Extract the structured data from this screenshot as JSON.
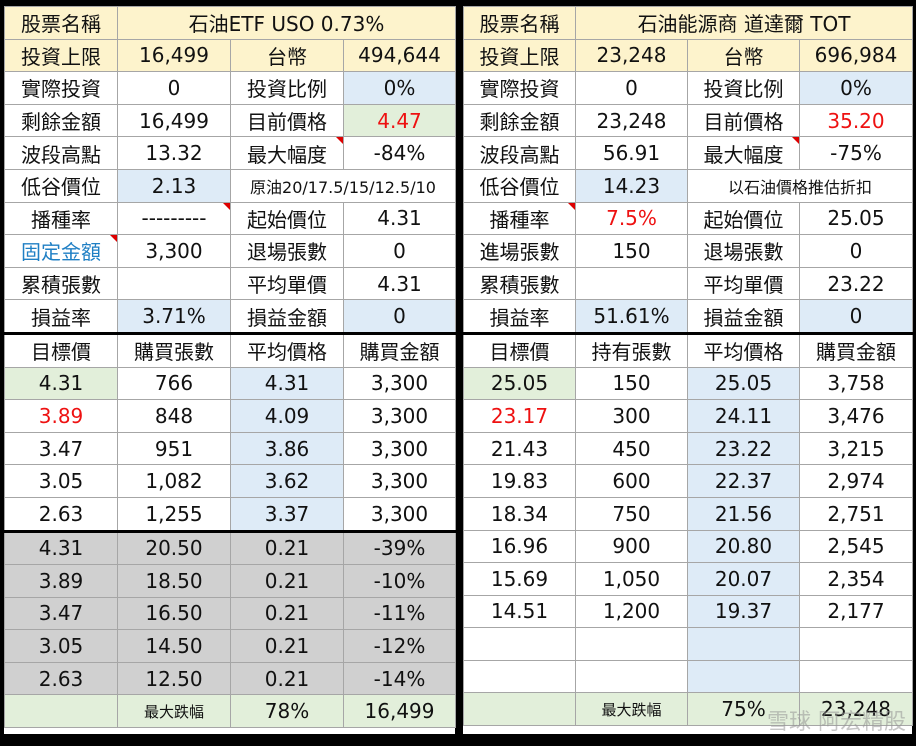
{
  "left": {
    "header": {
      "label": "股票名稱",
      "name": "石油ETF USO  0.73%"
    },
    "r1": {
      "a": "投資上限",
      "b": "16,499",
      "c": "台幣",
      "d": "494,644"
    },
    "r2": {
      "a": "實際投資",
      "b": "0",
      "c": "投資比例",
      "d": "0%"
    },
    "r3": {
      "a": "剩餘金額",
      "b": "16,499",
      "c": "目前價格",
      "d": "4.47"
    },
    "r4": {
      "a": "波段高點",
      "b": "13.32",
      "c": "最大幅度",
      "d": "-84%"
    },
    "r5": {
      "a": "低谷價位",
      "b": "2.13",
      "note": "原油20/17.5/15/12.5/10"
    },
    "r6": {
      "a": "播種率",
      "b": "---------",
      "c": "起始價位",
      "d": "4.31"
    },
    "r7": {
      "a": "固定金額",
      "b": "3,300",
      "c": "退場張數",
      "d": "0"
    },
    "r8": {
      "a": "累積張數",
      "b": "",
      "c": "平均單價",
      "d": "4.31"
    },
    "r9": {
      "a": "損益率",
      "b": "3.71%",
      "c": "損益金額",
      "d": "0"
    },
    "th": [
      "目標價",
      "購買張數",
      "平均價格",
      "購買金額"
    ],
    "rows": [
      [
        "4.31",
        "766",
        "4.31",
        "3,300"
      ],
      [
        "3.89",
        "848",
        "4.09",
        "3,300"
      ],
      [
        "3.47",
        "951",
        "3.86",
        "3,300"
      ],
      [
        "3.05",
        "1,082",
        "3.62",
        "3,300"
      ],
      [
        "2.63",
        "1,255",
        "3.37",
        "3,300"
      ]
    ],
    "grayrows": [
      [
        "4.31",
        "20.50",
        "0.21",
        "-39%"
      ],
      [
        "3.89",
        "18.50",
        "0.21",
        "-10%"
      ],
      [
        "3.47",
        "16.50",
        "0.21",
        "-11%"
      ],
      [
        "3.05",
        "14.50",
        "0.21",
        "-12%"
      ],
      [
        "2.63",
        "12.50",
        "0.21",
        "-14%"
      ]
    ],
    "footer": {
      "b": "最大跌幅",
      "c": "78%",
      "d": "16,499"
    }
  },
  "right": {
    "header": {
      "label": "股票名稱",
      "name": "石油能源商 道達爾 TOT"
    },
    "r1": {
      "a": "投資上限",
      "b": "23,248",
      "c": "台幣",
      "d": "696,984"
    },
    "r2": {
      "a": "實際投資",
      "b": "0",
      "c": "投資比例",
      "d": "0%"
    },
    "r3": {
      "a": "剩餘金額",
      "b": "23,248",
      "c": "目前價格",
      "d": "35.20"
    },
    "r4": {
      "a": "波段高點",
      "b": "56.91",
      "c": "最大幅度",
      "d": "-75%"
    },
    "r5": {
      "a": "低谷價位",
      "b": "14.23",
      "note": "以石油價格推估折扣"
    },
    "r6": {
      "a": "播種率",
      "b": "7.5%",
      "c": "起始價位",
      "d": "25.05"
    },
    "r7": {
      "a": "進場張數",
      "b": "150",
      "c": "退場張數",
      "d": "0"
    },
    "r8": {
      "a": "累積張數",
      "b": "",
      "c": "平均單價",
      "d": "23.22"
    },
    "r9": {
      "a": "損益率",
      "b": "51.61%",
      "c": "損益金額",
      "d": "0"
    },
    "th": [
      "目標價",
      "持有張數",
      "平均價格",
      "購買金額"
    ],
    "rows": [
      [
        "25.05",
        "150",
        "25.05",
        "3,758"
      ],
      [
        "23.17",
        "300",
        "24.11",
        "3,476"
      ],
      [
        "21.43",
        "450",
        "23.22",
        "3,215"
      ],
      [
        "19.83",
        "600",
        "22.37",
        "2,974"
      ],
      [
        "18.34",
        "750",
        "21.56",
        "2,751"
      ],
      [
        "16.96",
        "900",
        "20.80",
        "2,545"
      ],
      [
        "15.69",
        "1,050",
        "20.07",
        "2,354"
      ],
      [
        "14.51",
        "1,200",
        "19.37",
        "2,177"
      ],
      [
        "",
        "",
        "",
        ""
      ],
      [
        "",
        "",
        "",
        ""
      ]
    ],
    "footer": {
      "b": "最大跌幅",
      "c": "75%",
      "d": "23,248"
    }
  },
  "watermark": "雪球 阿宏精股"
}
